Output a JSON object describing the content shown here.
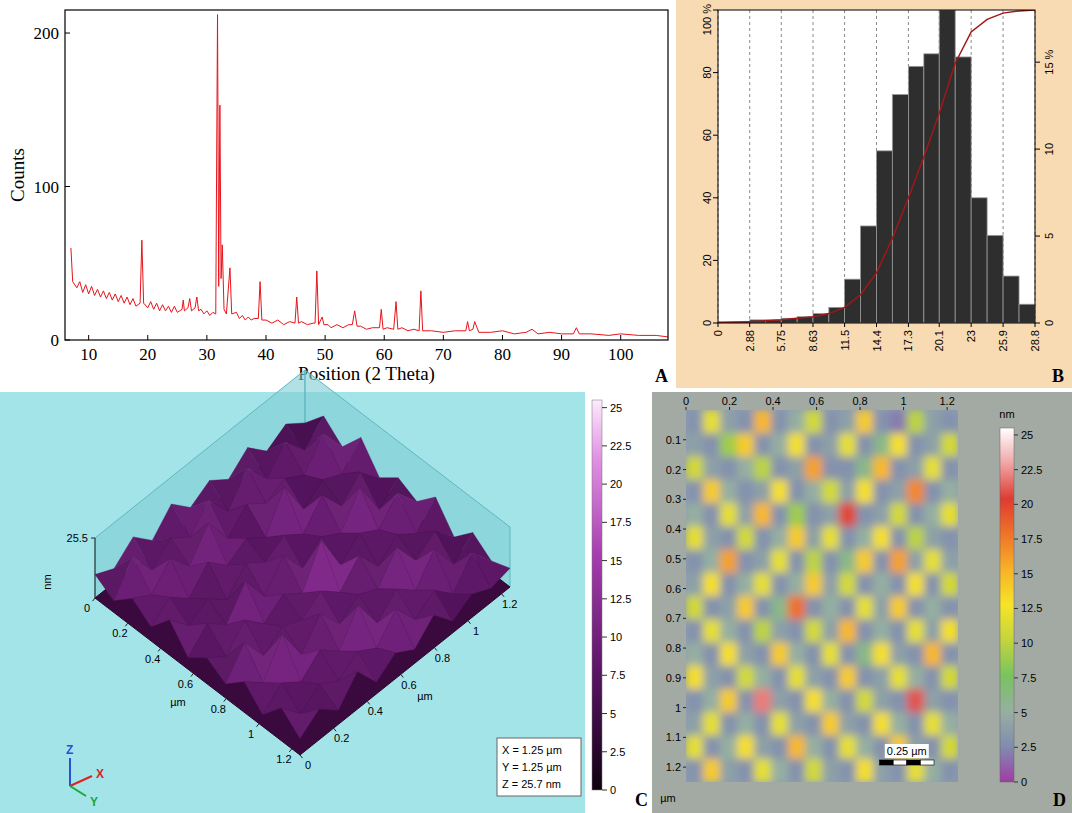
{
  "chart_data": [
    {
      "type": "line",
      "panel": "A",
      "xlabel": "Position (2 Theta)",
      "ylabel": "Counts",
      "xlim": [
        6,
        108
      ],
      "ylim": [
        0,
        215
      ],
      "xticks": [
        10,
        20,
        30,
        40,
        50,
        60,
        70,
        80,
        90,
        100
      ],
      "yticks": [
        0,
        100,
        200
      ],
      "x": [
        7,
        7.3,
        8,
        8.5,
        9,
        9.5,
        10,
        10.5,
        11,
        11.5,
        12,
        12.5,
        13,
        13.5,
        14,
        14.5,
        15,
        15.5,
        16,
        16.5,
        17,
        17.5,
        18,
        18.7,
        19,
        19.3,
        20,
        20.5,
        21,
        21.5,
        22,
        22.5,
        23,
        23.5,
        24,
        24.5,
        25,
        25.8,
        26,
        26.2,
        26.8,
        27.1,
        27.4,
        28,
        28.3,
        28.6,
        29,
        29.5,
        30,
        30.5,
        31,
        31.5,
        31.8,
        32,
        32.2,
        32.4,
        32.6,
        32.9,
        33.3,
        33.9,
        34.2,
        35,
        35.5,
        36,
        36.5,
        37,
        37.5,
        38,
        38.7,
        39,
        39.3,
        40,
        41,
        42,
        43,
        44,
        44.9,
        45.2,
        45.5,
        46,
        47,
        48,
        48.3,
        48.6,
        48.9,
        49.5,
        49.8,
        50.5,
        51,
        52,
        53,
        54,
        54.6,
        55,
        55.4,
        56,
        57,
        58,
        59.2,
        59.5,
        59.8,
        60.5,
        61.6,
        62,
        62.3,
        63,
        64,
        65,
        65.9,
        66.2,
        66.5,
        68,
        70,
        72,
        73.8,
        74.1,
        74.4,
        75,
        75.3,
        76,
        78,
        80,
        82,
        84,
        85,
        86,
        88,
        90,
        92,
        92.5,
        93,
        95,
        98,
        100,
        103,
        106,
        108
      ],
      "series": [
        {
          "color": "#e8141b",
          "values": [
            60,
            38,
            34,
            38,
            31,
            36,
            30,
            35,
            29,
            33,
            28,
            32,
            27,
            31,
            26,
            30,
            25,
            29,
            24,
            28,
            23,
            27,
            22,
            24,
            65,
            24,
            21,
            25,
            20,
            24,
            19,
            23,
            19,
            22,
            18,
            22,
            18,
            20,
            26,
            19,
            21,
            27,
            19,
            21,
            28,
            19,
            20,
            17,
            19,
            16,
            18,
            17,
            212,
            35,
            153,
            40,
            62,
            20,
            17,
            47,
            17,
            18,
            14,
            16,
            13,
            15,
            13,
            14,
            14,
            38,
            13,
            13,
            11,
            13,
            10,
            12,
            11,
            28,
            11,
            12,
            10,
            11,
            11,
            45,
            10,
            15,
            10,
            10,
            8,
            10,
            8,
            10,
            10,
            19,
            9,
            9,
            7,
            8,
            8,
            20,
            7,
            8,
            7,
            25,
            7,
            8,
            6,
            7,
            6,
            32,
            6,
            6,
            5,
            6,
            6,
            12,
            6,
            7,
            12,
            5,
            5,
            6,
            4,
            5,
            7,
            4,
            5,
            4,
            4,
            8,
            4,
            4,
            3,
            4,
            3,
            3,
            2
          ]
        }
      ]
    },
    {
      "type": "histogram",
      "panel": "B",
      "color": "#2e2e2e",
      "grid": true,
      "bins": [
        0,
        1.44,
        2.88,
        4.32,
        5.75,
        7.19,
        8.63,
        10.07,
        11.5,
        12.94,
        14.4,
        15.84,
        17.3,
        18.7,
        20.1,
        21.55,
        23,
        24.45,
        25.9,
        27.35,
        28.8
      ],
      "counts": [
        0.5,
        0.5,
        1,
        1,
        1.5,
        2,
        3,
        5,
        14,
        31,
        55,
        73,
        82,
        86,
        100,
        85,
        40,
        28,
        15,
        6
      ],
      "xlim": [
        0,
        28.8
      ],
      "xticks": [
        0,
        2.88,
        5.75,
        8.63,
        11.5,
        14.4,
        17.3,
        20.1,
        23,
        25.9,
        28.8
      ],
      "ylim": [
        0,
        100
      ],
      "yticks": [
        0,
        20,
        40,
        60,
        80,
        {
          "value": 100,
          "label": "100 %"
        }
      ],
      "y2lim": [
        0,
        18
      ],
      "y2ticks": [
        0,
        5,
        10,
        {
          "value": 15,
          "label": "15 %"
        }
      ],
      "series": [
        {
          "type": "line",
          "color": "#a01818",
          "values": [
            0,
            0.2,
            0.4,
            0.7,
            1,
            1.5,
            2,
            3,
            5,
            9,
            16,
            27,
            40,
            53,
            67,
            83,
            93,
            97,
            99,
            99.7,
            100
          ]
        }
      ]
    },
    {
      "type": "surface",
      "panel": "C",
      "xlabel": "µm",
      "ylabel": "µm",
      "zlabel": "nm",
      "xlim": [
        0,
        1.25
      ],
      "ylim": [
        0,
        1.25
      ],
      "zlim": [
        0,
        25.5
      ],
      "xticks": [
        0,
        0.2,
        0.4,
        0.6,
        0.8,
        1,
        1.2
      ],
      "yticks": [
        0,
        0.2,
        0.4,
        0.6,
        0.8,
        1,
        1.2
      ],
      "zticks": [
        25.5
      ],
      "cells": [
        [
          3,
          12,
          5,
          15,
          4,
          10,
          6,
          14,
          3,
          11,
          5,
          8
        ],
        [
          9,
          4,
          17,
          6,
          13,
          3,
          16,
          5,
          12,
          4,
          15,
          6
        ],
        [
          4,
          14,
          6,
          10,
          5,
          19,
          7,
          11,
          6,
          17,
          4,
          10
        ],
        [
          12,
          5,
          11,
          4,
          16,
          6,
          12,
          4,
          18,
          6,
          12,
          5
        ],
        [
          5,
          16,
          7,
          20,
          6,
          11,
          5,
          15,
          7,
          13,
          6,
          14
        ],
        [
          11,
          4,
          13,
          5,
          12,
          4,
          22,
          6,
          11,
          5,
          17,
          6
        ],
        [
          6,
          15,
          5,
          11,
          7,
          16,
          6,
          13,
          5,
          19,
          7,
          11
        ],
        [
          14,
          6,
          18,
          6,
          13,
          5,
          12,
          7,
          16,
          6,
          12,
          5
        ],
        [
          5,
          12,
          6,
          14,
          4,
          18,
          6,
          11,
          5,
          13,
          6,
          16
        ],
        [
          13,
          5,
          16,
          5,
          11,
          6,
          14,
          5,
          20,
          6,
          11,
          6
        ],
        [
          6,
          17,
          7,
          12,
          6,
          13,
          5,
          17,
          6,
          12,
          5,
          13
        ],
        [
          10,
          5,
          12,
          6,
          15,
          5,
          11,
          6,
          13,
          5,
          14,
          7
        ]
      ],
      "colorbar": {
        "range": [
          0,
          25.5
        ],
        "ticks": [
          0,
          2.5,
          5,
          7.5,
          10,
          12.5,
          15,
          17.5,
          20,
          22.5,
          25
        ]
      },
      "info": [
        "X = 1.25 µm",
        "Y = 1.25 µm",
        "Z = 25.7 nm"
      ],
      "axes_letters": [
        "Z",
        "X",
        "Y"
      ]
    },
    {
      "type": "heatmap",
      "panel": "D",
      "ylabel": "µm",
      "xlim": [
        0,
        1.25
      ],
      "ylim": [
        0,
        1.25
      ],
      "xticks": [
        0,
        0.2,
        0.4,
        0.6,
        0.8,
        1,
        1.2
      ],
      "yticks": [
        0.1,
        0.2,
        0.3,
        0.4,
        0.5,
        0.6,
        0.7,
        0.8,
        0.9,
        1,
        1.1,
        1.2
      ],
      "cells": [
        [
          3,
          12,
          4,
          3,
          15,
          3,
          5,
          11,
          3,
          4,
          14,
          3,
          2,
          10,
          4,
          3
        ],
        [
          4,
          3,
          9,
          14,
          3,
          5,
          13,
          3,
          4,
          12,
          3,
          6,
          13,
          3,
          4,
          11
        ],
        [
          11,
          4,
          3,
          5,
          10,
          3,
          4,
          16,
          3,
          3,
          6,
          15,
          3,
          4,
          12,
          3
        ],
        [
          3,
          14,
          5,
          3,
          4,
          13,
          3,
          5,
          11,
          4,
          13,
          3,
          4,
          17,
          3,
          5
        ],
        [
          5,
          3,
          12,
          4,
          15,
          3,
          9,
          3,
          4,
          20,
          3,
          4,
          11,
          3,
          5,
          12
        ],
        [
          12,
          4,
          3,
          11,
          3,
          5,
          14,
          4,
          12,
          3,
          5,
          13,
          3,
          10,
          4,
          3
        ],
        [
          3,
          5,
          16,
          3,
          4,
          12,
          3,
          10,
          3,
          6,
          14,
          3,
          16,
          4,
          12,
          4
        ],
        [
          4,
          13,
          3,
          5,
          12,
          3,
          5,
          14,
          4,
          11,
          3,
          5,
          3,
          13,
          3,
          11
        ],
        [
          11,
          3,
          4,
          14,
          3,
          6,
          18,
          3,
          5,
          3,
          12,
          4,
          14,
          3,
          5,
          3
        ],
        [
          3,
          12,
          5,
          3,
          10,
          4,
          3,
          11,
          4,
          15,
          3,
          5,
          3,
          12,
          4,
          13
        ],
        [
          5,
          3,
          13,
          4,
          3,
          14,
          5,
          3,
          12,
          3,
          6,
          13,
          4,
          3,
          15,
          3
        ],
        [
          13,
          4,
          3,
          11,
          5,
          3,
          12,
          4,
          3,
          14,
          3,
          4,
          12,
          5,
          3,
          11
        ],
        [
          3,
          5,
          14,
          3,
          22,
          4,
          3,
          13,
          5,
          3,
          11,
          4,
          3,
          21,
          4,
          3
        ],
        [
          4,
          12,
          3,
          5,
          3,
          12,
          4,
          3,
          14,
          4,
          3,
          13,
          5,
          3,
          12,
          5
        ],
        [
          12,
          3,
          5,
          13,
          4,
          3,
          15,
          5,
          3,
          12,
          5,
          3,
          14,
          4,
          3,
          11
        ],
        [
          3,
          14,
          4,
          3,
          12,
          5,
          3,
          11,
          4,
          3,
          13,
          4,
          3,
          12,
          5,
          3
        ]
      ],
      "colorbar": {
        "range": [
          0,
          25.5
        ],
        "ticks": [
          0,
          2.5,
          5,
          7.5,
          10,
          12.5,
          15,
          17.5,
          20,
          22.5,
          25
        ],
        "label": "nm"
      },
      "scalebar": {
        "value": 0.25,
        "label": "0.25 µm"
      }
    }
  ]
}
